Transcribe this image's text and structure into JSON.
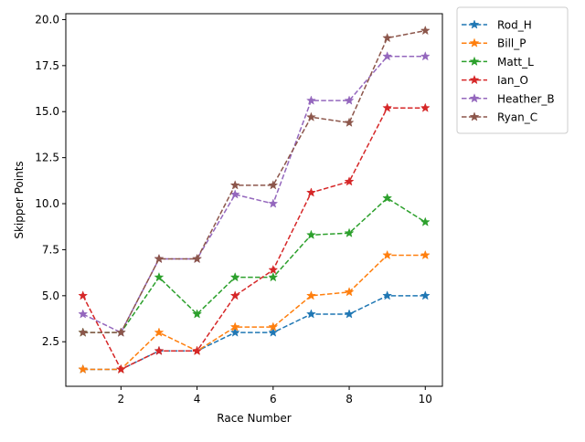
{
  "chart_data": {
    "type": "line",
    "title": "",
    "xlabel": "Race Number",
    "ylabel": "Skipper Points",
    "xlim": [
      0.55,
      10.45
    ],
    "ylim": [
      0.08,
      20.32
    ],
    "xticks": [
      2,
      4,
      6,
      8,
      10
    ],
    "xtick_labels": [
      "2",
      "4",
      "6",
      "8",
      "10"
    ],
    "yticks": [
      2.5,
      5.0,
      7.5,
      10.0,
      12.5,
      15.0,
      17.5,
      20.0
    ],
    "ytick_labels": [
      "2.5",
      "5.0",
      "7.5",
      "10.0",
      "12.5",
      "15.0",
      "17.5",
      "20.0"
    ],
    "grid": false,
    "legend_placement": "outside-top-right",
    "line_style": "dashed",
    "marker": "star",
    "x": [
      1,
      2,
      3,
      4,
      5,
      6,
      7,
      8,
      9,
      10
    ],
    "series": [
      {
        "name": "Rod_H",
        "color": "#1f77b4",
        "values": [
          1,
          1,
          2,
          2,
          3,
          3,
          4,
          4,
          5,
          5
        ]
      },
      {
        "name": "Bill_P",
        "color": "#ff7f0e",
        "values": [
          1,
          1,
          3,
          2,
          3.3,
          3.3,
          5,
          5.2,
          7.2,
          7.2
        ]
      },
      {
        "name": "Matt_L",
        "color": "#2ca02c",
        "values": [
          3,
          3,
          6,
          4,
          6,
          6,
          8.3,
          8.4,
          10.3,
          9
        ]
      },
      {
        "name": "Ian_O",
        "color": "#d62728",
        "values": [
          5,
          1,
          2,
          2,
          5,
          6.4,
          10.6,
          11.2,
          15.2,
          15.2
        ]
      },
      {
        "name": "Heather_B",
        "color": "#9467bd",
        "values": [
          4,
          3,
          7,
          7,
          10.5,
          10,
          15.6,
          15.6,
          18,
          18
        ]
      },
      {
        "name": "Ryan_C",
        "color": "#8c564b",
        "values": [
          3,
          3,
          7,
          7,
          11,
          11,
          14.7,
          14.4,
          19,
          19.4
        ]
      }
    ]
  }
}
